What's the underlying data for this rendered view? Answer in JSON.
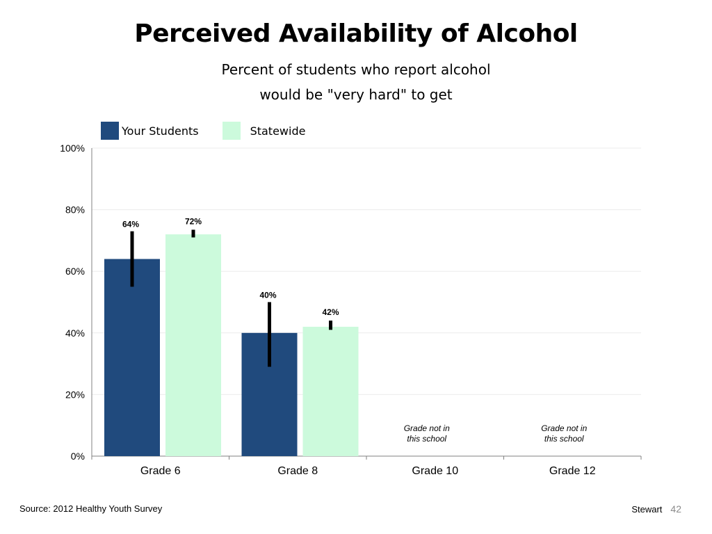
{
  "page": {
    "title": "Perceived Availability of Alcohol",
    "subtitle_line1": "Percent of students who report alcohol",
    "subtitle_line2": "would be \"very hard\" to get",
    "source": "Source: 2012 Healthy Youth Survey",
    "presenter": "Stewart",
    "page_number": "42"
  },
  "chart_data": {
    "type": "bar",
    "categories": [
      "Grade 6",
      "Grade 8",
      "Grade 10",
      "Grade 12"
    ],
    "series": [
      {
        "name": "Your Students",
        "color": "#204a7d",
        "values": [
          64,
          40,
          null,
          null
        ],
        "labels": [
          "64%",
          "40%",
          "",
          ""
        ],
        "error_low": [
          55,
          29,
          null,
          null
        ],
        "error_high": [
          73,
          50,
          null,
          null
        ]
      },
      {
        "name": "Statewide",
        "color": "#ccfadc",
        "values": [
          72,
          42,
          null,
          null
        ],
        "labels": [
          "72%",
          "42%",
          "",
          ""
        ],
        "error_low": [
          71,
          41,
          null,
          null
        ],
        "error_high": [
          73.5,
          44,
          null,
          null
        ]
      }
    ],
    "annotations": [
      {
        "category": "Grade 10",
        "line1": "Grade not in",
        "line2": "this school"
      },
      {
        "category": "Grade 12",
        "line1": "Grade not in",
        "line2": "this school"
      }
    ],
    "yticks": [
      "0%",
      "20%",
      "40%",
      "60%",
      "80%",
      "100%"
    ],
    "ylim": [
      0,
      100
    ],
    "grid": true,
    "legend_position": "top-left"
  }
}
